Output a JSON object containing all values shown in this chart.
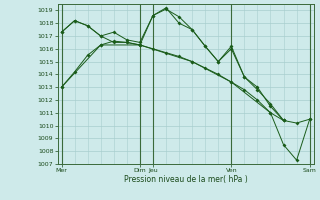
{
  "xlabel": "Pression niveau de la mer( hPa )",
  "ylim": [
    1007,
    1019.5
  ],
  "yticks": [
    1007,
    1008,
    1009,
    1010,
    1011,
    1012,
    1013,
    1014,
    1015,
    1016,
    1017,
    1018,
    1019
  ],
  "xtick_labels": [
    "Mer",
    "Dim",
    "Jeu",
    "Ven",
    "Sam"
  ],
  "xtick_positions": [
    0,
    6,
    7,
    13,
    19
  ],
  "bg_color": "#ceeaea",
  "line_color": "#1a5c1a",
  "grid_color": "#a8cece",
  "vline_positions": [
    0,
    6,
    7,
    13,
    19
  ],
  "lines": [
    {
      "x": [
        0,
        1,
        2,
        3,
        4,
        5,
        6,
        7,
        8,
        9,
        10,
        11,
        12,
        13,
        14,
        15,
        16,
        17,
        18,
        19
      ],
      "y": [
        1013.0,
        1014.2,
        1015.5,
        1016.3,
        1016.6,
        1016.5,
        1016.3,
        1016.0,
        1015.7,
        1015.4,
        1015.0,
        1014.5,
        1014.0,
        1013.4,
        1012.8,
        1012.0,
        1011.0,
        1010.4,
        1010.2,
        1010.5
      ]
    },
    {
      "x": [
        0,
        1,
        2,
        3,
        4,
        5,
        6,
        7,
        8,
        9,
        10,
        11,
        12,
        13,
        14,
        15,
        16,
        17
      ],
      "y": [
        1017.3,
        1018.2,
        1017.8,
        1017.0,
        1016.5,
        1016.5,
        1016.3,
        1018.6,
        1019.1,
        1018.5,
        1017.5,
        1016.2,
        1015.0,
        1016.0,
        1013.8,
        1012.8,
        1011.7,
        1010.4
      ]
    },
    {
      "x": [
        0,
        1,
        2,
        3,
        4,
        5,
        6,
        7,
        8,
        9,
        10,
        11,
        12,
        13,
        14,
        15,
        16,
        17
      ],
      "y": [
        1017.3,
        1018.2,
        1017.8,
        1017.0,
        1017.3,
        1016.7,
        1016.5,
        1018.6,
        1019.2,
        1018.0,
        1017.5,
        1016.2,
        1015.0,
        1016.2,
        1013.8,
        1013.0,
        1011.5,
        1010.4
      ]
    },
    {
      "x": [
        0,
        3,
        6,
        10,
        13,
        16,
        17,
        18,
        19
      ],
      "y": [
        1013.0,
        1016.3,
        1016.3,
        1015.0,
        1013.4,
        1011.0,
        1008.5,
        1007.3,
        1010.5
      ]
    }
  ],
  "xlim": [
    -0.3,
    19.3
  ]
}
